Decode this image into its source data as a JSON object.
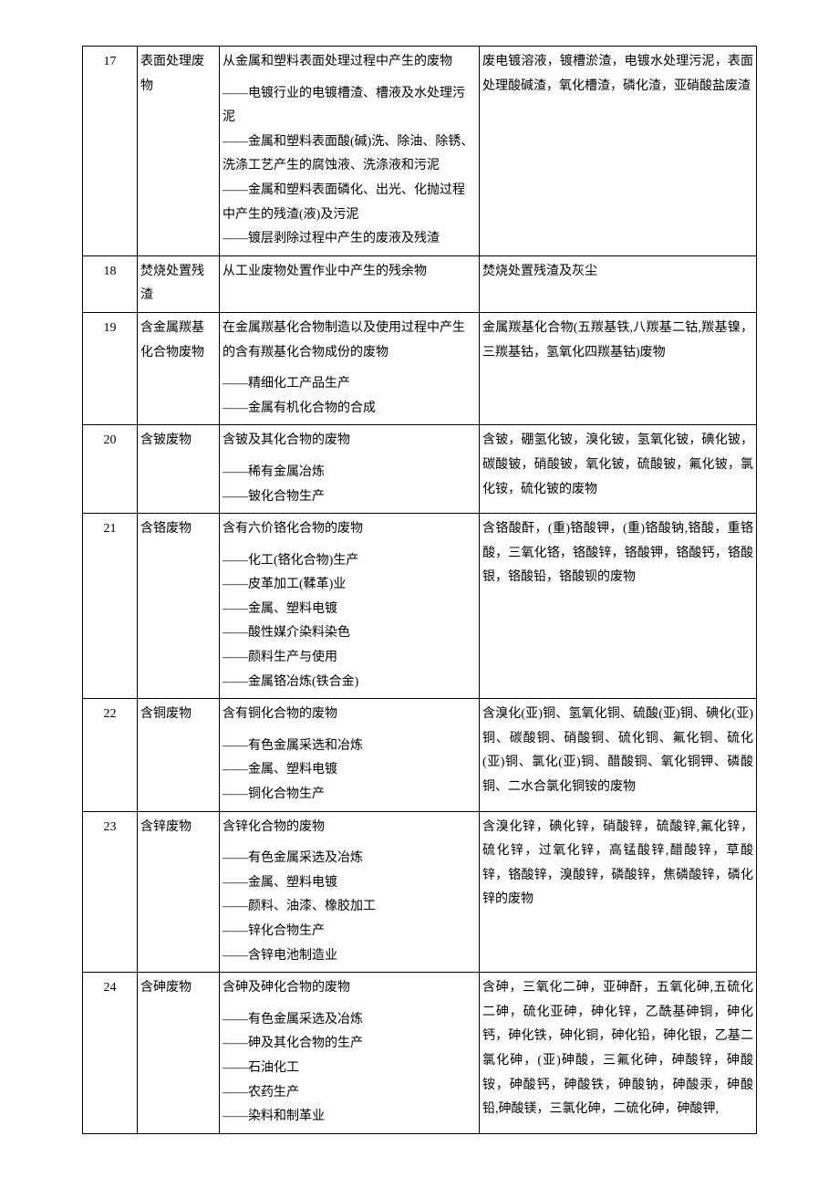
{
  "table": {
    "columns": {
      "num_width": 60,
      "name_width": 90,
      "desc_width": 285
    },
    "border_color": "#000000",
    "background_color": "#ffffff",
    "text_color": "#000000",
    "font_size": 14,
    "line_height": 1.9,
    "rows": [
      {
        "num": "17",
        "name": "表面处理废物",
        "desc_main": "从金属和塑料表面处理过程中产生的废物",
        "desc_subs": [
          "——电镀行业的电镀槽渣、槽液及水处理污泥",
          "——金属和塑料表面酸(碱)洗、除油、除锈、洗涤工艺产生的腐蚀液、洗涤液和污泥",
          "——金属和塑料表面磷化、出光、化抛过程中产生的残渣(液)及污泥",
          "——镀层剥除过程中产生的废液及残渣"
        ],
        "detail": "废电镀溶液，镀槽淤渣，电镀水处理污泥，表面处理酸碱渣，氧化槽渣，磷化渣，亚硝酸盐废渣"
      },
      {
        "num": "18",
        "name": "焚烧处置残渣",
        "desc_main": "从工业废物处置作业中产生的残余物",
        "desc_subs": [],
        "detail": "焚烧处置残渣及灰尘"
      },
      {
        "num": "19",
        "name": "含金属羰基化合物废物",
        "desc_main": "在金属羰基化合物制造以及使用过程中产生的含有羰基化合物成份的废物",
        "desc_subs": [
          "——精细化工产品生产",
          "——金属有机化合物的合成"
        ],
        "detail": "金属羰基化合物(五羰基铁,八羰基二钴,羰基镍，三羰基钴，氢氧化四羰基钴)废物"
      },
      {
        "num": "20",
        "name": "含铍废物",
        "desc_main": "含铍及其化合物的废物",
        "desc_subs": [
          "——稀有金属冶炼",
          "——铍化合物生产"
        ],
        "detail": "含铍，硼氢化铍，溴化铍，氢氧化铍，碘化铍，碳酸铍，硝酸铍，氧化铍，硫酸铍，氟化铍，氯化铵，硫化铍的废物"
      },
      {
        "num": "21",
        "name": "含铬废物",
        "desc_main": "含有六价铬化合物的废物",
        "desc_subs": [
          "——化工(铬化合物)生产",
          "——皮革加工(鞣革)业",
          "——金属、塑料电镀",
          "——酸性媒介染料染色",
          "——颜料生产与使用",
          "——金属铬冶炼(铁合金)"
        ],
        "detail": "含铬酸酐，(重)铬酸钾，(重)铬酸钠,铬酸，重铬酸，三氧化铬，铬酸锌，铬酸钾，铬酸钙，铬酸银，铬酸铅，铬酸钡的废物"
      },
      {
        "num": "22",
        "name": "含铜废物",
        "desc_main": "含有铜化合物的废物",
        "desc_subs": [
          "——有色金属采选和冶炼",
          "——金属、塑料电镀",
          "——铜化合物生产"
        ],
        "detail": "含溴化(亚)铜、氢氧化铜、硫酸(亚)铜、碘化(亚)铜、碳酸铜、硝酸铜、硫化铜、氟化铜、硫化(亚)铜、氯化(亚)铜、醋酸铜、氧化铜钾、磷酸铜、二水合氯化铜铵的废物"
      },
      {
        "num": "23",
        "name": "含锌废物",
        "desc_main": "含锌化合物的废物",
        "desc_subs": [
          "——有色金属采选及冶炼",
          "——金属、塑料电镀",
          "——颜料、油漆、橡胶加工",
          "——锌化合物生产",
          "——含锌电池制造业"
        ],
        "detail": "含溴化锌，碘化锌，硝酸锌，硫酸锌,氟化锌，硫化锌，过氧化锌，高锰酸锌,醋酸锌，草酸锌，铬酸锌，溴酸锌，磷酸锌，焦磷酸锌，磷化锌的废物"
      },
      {
        "num": "24",
        "name": "含砷废物",
        "desc_main": "含砷及砷化合物的废物",
        "desc_subs": [
          "——有色金属采选及冶炼",
          "——砷及其化合物的生产",
          "——石油化工",
          "——农药生产",
          "——染料和制革业"
        ],
        "detail": "含砷，三氧化二砷，亚砷酐，五氧化砷,五硫化二砷，硫化亚砷，砷化锌，乙酰基砷铜，砷化钙，砷化铁，砷化铜，砷化铅，砷化银，乙基二氯化砷，(亚)砷酸，三氟化砷，砷酸锌，砷酸铵，砷酸钙，砷酸铁，砷酸钠，砷酸汞，砷酸铅,砷酸镁，三氯化砷，二硫化砷，砷酸钾,"
      }
    ]
  }
}
